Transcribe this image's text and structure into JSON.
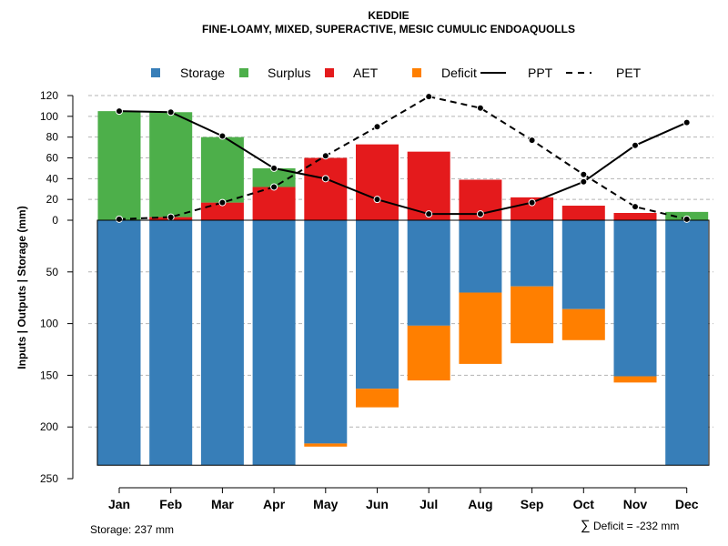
{
  "chart_data": {
    "type": "bar",
    "title": "KEDDIE",
    "subtitle": "FINE-LOAMY, MIXED, SUPERACTIVE, MESIC CUMULIC ENDOAQUOLLS",
    "ylabel": "Inputs | Outputs | Storage     (mm)",
    "categories": [
      "Jan",
      "Feb",
      "Mar",
      "Apr",
      "May",
      "Jun",
      "Jul",
      "Aug",
      "Sep",
      "Oct",
      "Nov",
      "Dec"
    ],
    "ylim_upper": [
      0,
      120
    ],
    "ylim_lower": [
      0,
      250
    ],
    "upper_ticks": [
      "0",
      "20",
      "40",
      "60",
      "80",
      "100",
      "120"
    ],
    "lower_ticks": [
      "50",
      "100",
      "150",
      "200",
      "250"
    ],
    "series": [
      {
        "name": "Storage",
        "kind": "bar-down",
        "color": "#377EB8",
        "values": [
          237,
          237,
          237,
          237,
          216,
          163,
          102,
          70,
          64,
          86,
          151,
          237
        ]
      },
      {
        "name": "Deficit",
        "kind": "bar-down-stacked",
        "color": "#FF7F00",
        "values": [
          0,
          0,
          0,
          0,
          3,
          18,
          53,
          69,
          55,
          30,
          6,
          0
        ]
      },
      {
        "name": "AET",
        "kind": "bar-up",
        "color": "#E41A1C",
        "values": [
          0,
          3,
          17,
          32,
          60,
          73,
          66,
          39,
          22,
          14,
          7,
          0
        ]
      },
      {
        "name": "Surplus",
        "kind": "bar-up-stacked",
        "color": "#4DAF4A",
        "values": [
          105,
          101,
          63,
          18,
          0,
          0,
          0,
          0,
          0,
          0,
          0,
          8
        ]
      },
      {
        "name": "PPT",
        "kind": "line",
        "style": "solid",
        "color": "#000000",
        "values": [
          105,
          104,
          81,
          50,
          40,
          20,
          6,
          6,
          17,
          37,
          72,
          94
        ]
      },
      {
        "name": "PET",
        "kind": "line",
        "style": "dashed",
        "color": "#000000",
        "values": [
          1,
          3,
          17,
          32,
          62,
          90,
          119,
          108,
          77,
          44,
          13,
          1
        ]
      }
    ],
    "legend": {
      "position": "top",
      "items": [
        {
          "label": "Storage",
          "color": "#377EB8",
          "kind": "box"
        },
        {
          "label": "Surplus",
          "color": "#4DAF4A",
          "kind": "box"
        },
        {
          "label": "AET",
          "color": "#E41A1C",
          "kind": "box"
        },
        {
          "label": "Deficit",
          "color": "#FF7F00",
          "kind": "box"
        },
        {
          "label": "PPT",
          "color": "#000000",
          "kind": "solid-line"
        },
        {
          "label": "PET",
          "color": "#000000",
          "kind": "dashed-line"
        }
      ]
    },
    "grid": true,
    "footer_storage": "Storage: 237 mm",
    "footer_deficit_symbol": "∑",
    "footer_deficit": "Deficit = -232 mm"
  }
}
